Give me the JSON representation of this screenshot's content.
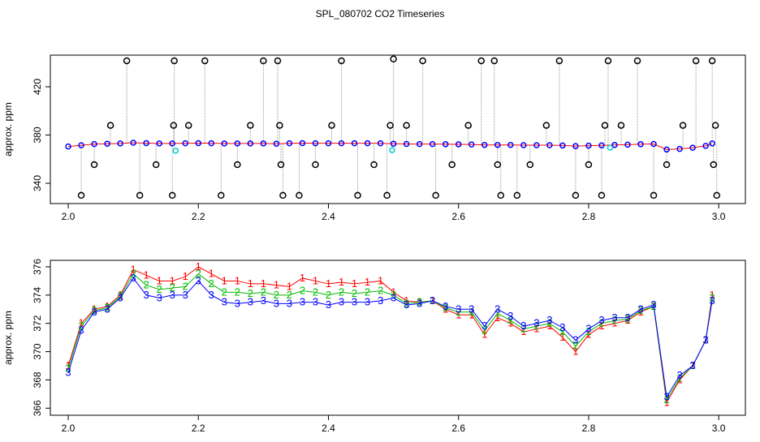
{
  "title": "SPL_080702  CO2 Timeseries",
  "chart_data": [
    {
      "type": "scatter",
      "ylabel": "approx. ppm",
      "xlim": [
        1.9725,
        3.041
      ],
      "ylim": [
        323.2,
        446.2
      ],
      "xticks": [
        {
          "value": 2,
          "label": "2.0"
        },
        2.2,
        2.4,
        2.6,
        2.8,
        {
          "value": 3,
          "label": "3.0"
        }
      ],
      "yticks": [
        340,
        380,
        420
      ],
      "series": [
        {
          "color": "#0000ff",
          "line_color": "#ff0000",
          "x": [
            2.0,
            2.02,
            2.04,
            2.06,
            2.08,
            2.1,
            2.12,
            2.14,
            2.16,
            2.18,
            2.2,
            2.22,
            2.24,
            2.26,
            2.28,
            2.3,
            2.32,
            2.34,
            2.36,
            2.38,
            2.4,
            2.42,
            2.44,
            2.46,
            2.48,
            2.5,
            2.52,
            2.54,
            2.56,
            2.58,
            2.6,
            2.62,
            2.64,
            2.66,
            2.68,
            2.7,
            2.72,
            2.74,
            2.76,
            2.78,
            2.8,
            2.82,
            2.84,
            2.86,
            2.88,
            2.9,
            2.92,
            2.94,
            2.96,
            2.98,
            2.99
          ],
          "values": [
            370.5,
            371.5,
            372.5,
            372.8,
            373,
            373.6,
            373.3,
            373,
            373,
            373.2,
            373.3,
            373.2,
            373,
            373,
            373,
            373,
            372.8,
            373.2,
            373.3,
            373.2,
            373.2,
            373.2,
            373.2,
            373.2,
            373.2,
            372.8,
            372.6,
            372.5,
            372.5,
            372.4,
            372.3,
            372.2,
            371.8,
            371.8,
            371.8,
            371.6,
            371.6,
            371.6,
            371.3,
            370.8,
            371.2,
            371.4,
            371.8,
            372,
            372.4,
            372.6,
            368,
            368.5,
            369.5,
            371,
            373
          ]
        },
        {
          "color": "#000000",
          "role": "outlier",
          "x": [
            2.02,
            2.04,
            2.065,
            2.09,
            2.11,
            2.135,
            2.16,
            2.162,
            2.163,
            2.185,
            2.21,
            2.235,
            2.26,
            2.28,
            2.3,
            2.322,
            2.325,
            2.327,
            2.33,
            2.355,
            2.38,
            2.405,
            2.42,
            2.445,
            2.47,
            2.49,
            2.495,
            2.5,
            2.52,
            2.545,
            2.565,
            2.59,
            2.615,
            2.635,
            2.655,
            2.66,
            2.665,
            2.69,
            2.71,
            2.735,
            2.755,
            2.78,
            2.8,
            2.82,
            2.825,
            2.83,
            2.85,
            2.875,
            2.9,
            2.92,
            2.945,
            2.965,
            2.99,
            2.992,
            2.995,
            2.997
          ],
          "values": [
            330,
            355.5,
            388,
            441.5,
            330,
            355.5,
            330,
            388,
            441.5,
            388,
            441.5,
            330,
            355.5,
            388,
            441.5,
            441.5,
            388,
            355.5,
            330,
            330,
            355.5,
            388,
            441.5,
            330,
            355.5,
            330,
            388,
            443,
            388,
            441.5,
            330,
            355.5,
            388,
            441.5,
            441.5,
            355.5,
            330,
            330,
            355.5,
            388,
            441.5,
            330,
            355.5,
            330,
            388,
            441.5,
            388,
            441.5,
            330,
            355.5,
            388,
            441.5,
            441.5,
            355.5,
            388,
            330
          ]
        },
        {
          "color": "#00cccc",
          "x": [
            2.165,
            2.498,
            2.833
          ],
          "values": [
            367,
            367.5,
            369.5
          ]
        }
      ]
    },
    {
      "type": "line",
      "ylabel": "approx. ppm",
      "xlim": [
        1.9725,
        3.041
      ],
      "ylim": [
        365.5,
        376.46
      ],
      "xticks": [
        {
          "value": 2,
          "label": "2.0"
        },
        2.2,
        2.4,
        2.6,
        2.8,
        {
          "value": 3,
          "label": "3.0"
        }
      ],
      "yticks": [
        366,
        368,
        370,
        372,
        374,
        376
      ],
      "x": [
        2.0,
        2.02,
        2.04,
        2.06,
        2.08,
        2.1,
        2.12,
        2.14,
        2.16,
        2.18,
        2.2,
        2.22,
        2.24,
        2.26,
        2.28,
        2.3,
        2.32,
        2.34,
        2.36,
        2.38,
        2.4,
        2.42,
        2.44,
        2.46,
        2.48,
        2.5,
        2.52,
        2.54,
        2.56,
        2.58,
        2.6,
        2.62,
        2.64,
        2.66,
        2.68,
        2.7,
        2.72,
        2.74,
        2.76,
        2.78,
        2.8,
        2.82,
        2.84,
        2.86,
        2.88,
        2.9,
        2.92,
        2.94,
        2.96,
        2.98,
        2.99
      ],
      "series": [
        {
          "marker": "1",
          "color": "#ff0000",
          "values": [
            369,
            372,
            373,
            373.2,
            374,
            375.8,
            375.4,
            375,
            375,
            375.3,
            376,
            375.5,
            375,
            375,
            374.8,
            374.8,
            374.7,
            374.6,
            375.2,
            375,
            374.8,
            374.9,
            374.8,
            374.9,
            375,
            374.2,
            373.6,
            373.5,
            373.6,
            373,
            372.6,
            372.6,
            371.2,
            372.4,
            372,
            371.4,
            371.6,
            371.8,
            371,
            370,
            371.2,
            371.8,
            372,
            372.2,
            372.8,
            373.2,
            366.4,
            368,
            369,
            370.8,
            374
          ]
        },
        {
          "marker": "2",
          "color": "#00bb00",
          "values": [
            368.8,
            371.8,
            372.9,
            373.1,
            373.9,
            375.5,
            374.7,
            374.4,
            374.5,
            374.6,
            375.5,
            374.8,
            374.2,
            374.2,
            374.1,
            374.2,
            374,
            374,
            374.3,
            374.2,
            374,
            374.2,
            374.1,
            374.2,
            374.3,
            374,
            373.4,
            373.5,
            373.6,
            373.1,
            372.8,
            372.8,
            371.5,
            372.7,
            372.2,
            371.6,
            371.8,
            372,
            371.4,
            370.4,
            371.4,
            372,
            372.2,
            372.3,
            372.9,
            373.2,
            366.6,
            368.1,
            369,
            370.8,
            373.8
          ]
        },
        {
          "marker": "3",
          "color": "#0000ff",
          "values": [
            368.5,
            371.5,
            372.8,
            373,
            373.8,
            375.2,
            374,
            373.8,
            374,
            374,
            375,
            374,
            373.5,
            373.4,
            373.5,
            373.6,
            373.4,
            373.4,
            373.5,
            373.5,
            373.3,
            373.5,
            373.5,
            373.5,
            373.6,
            373.8,
            373.3,
            373.4,
            373.6,
            373.2,
            373,
            373,
            371.8,
            373,
            372.5,
            371.8,
            372,
            372.2,
            371.7,
            370.8,
            371.6,
            372.2,
            372.4,
            372.4,
            373,
            373.3,
            366.8,
            368.3,
            369,
            370.8,
            373.6
          ]
        }
      ]
    }
  ]
}
